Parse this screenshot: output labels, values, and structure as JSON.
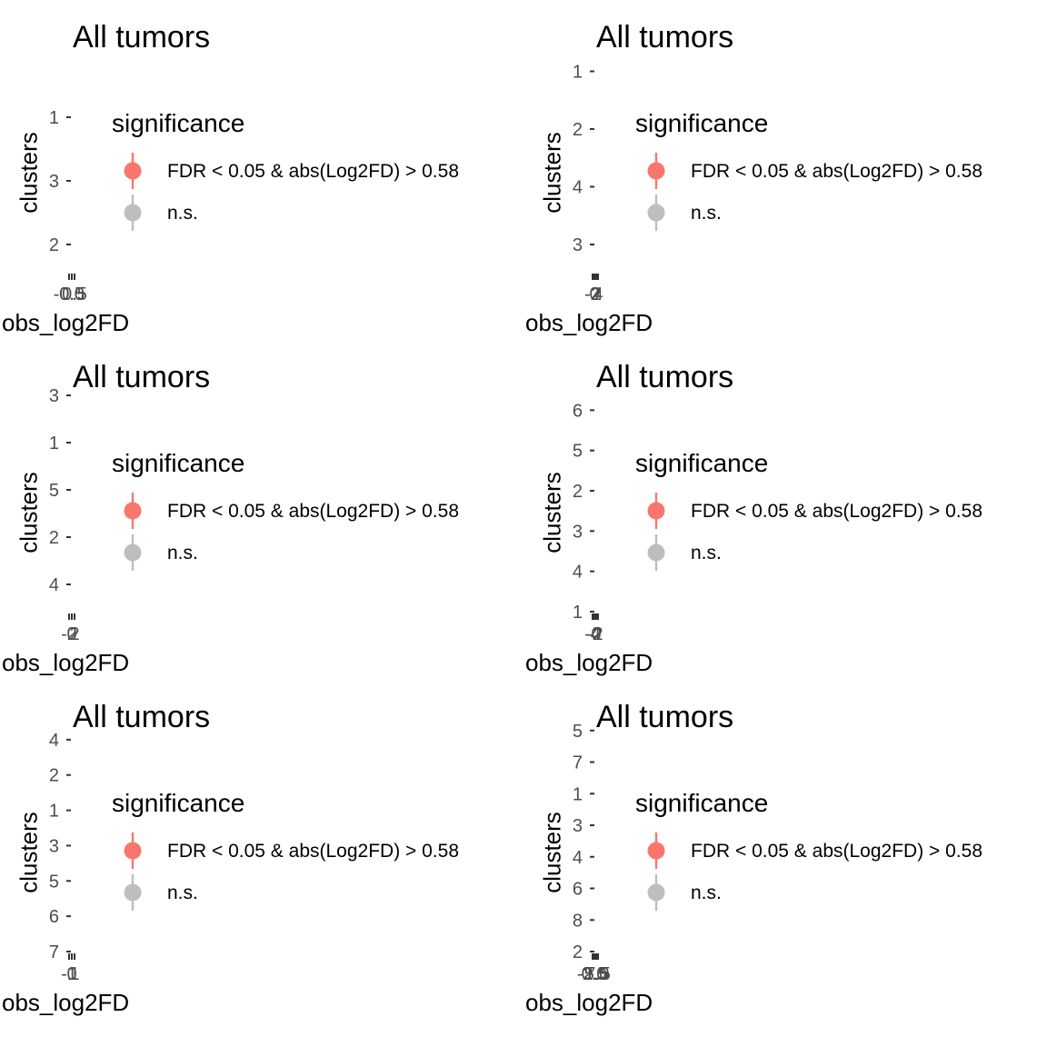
{
  "colors": {
    "significant": "#F8766D",
    "ns": "#BEBEBE",
    "axis_text": "#4D4D4D",
    "tick": "#333333"
  },
  "chart_data": [
    {
      "type": "scatter",
      "title": "All tumors",
      "xlabel": "obs_log2FD",
      "ylabel": "clusters",
      "categories": [
        "2",
        "3",
        "1"
      ],
      "x_ticks": [
        "-0.5",
        "0.0",
        "0.5"
      ],
      "series": [],
      "legend": {
        "title": "significance",
        "position": "right",
        "entries": [
          "FDR < 0.05 & abs(Log2FD) > 0.58",
          "n.s."
        ]
      }
    },
    {
      "type": "scatter",
      "title": "All tumors",
      "xlabel": "obs_log2FD",
      "ylabel": "clusters",
      "categories": [
        "3",
        "4",
        "2",
        "1"
      ],
      "x_ticks": [
        "-2",
        "0",
        "2",
        "4"
      ],
      "series": [],
      "legend": {
        "title": "significance",
        "position": "right",
        "entries": [
          "FDR < 0.05 & abs(Log2FD) > 0.58",
          "n.s."
        ]
      }
    },
    {
      "type": "scatter",
      "title": "All tumors",
      "xlabel": "obs_log2FD",
      "ylabel": "clusters",
      "categories": [
        "4",
        "2",
        "5",
        "1",
        "3"
      ],
      "x_ticks": [
        "-2",
        "0",
        "2"
      ],
      "series": [],
      "legend": {
        "title": "significance",
        "position": "right",
        "entries": [
          "FDR < 0.05 & abs(Log2FD) > 0.58",
          "n.s."
        ]
      }
    },
    {
      "type": "scatter",
      "title": "All tumors",
      "xlabel": "obs_log2FD",
      "ylabel": "clusters",
      "categories": [
        "1",
        "4",
        "3",
        "2",
        "5",
        "6"
      ],
      "x_ticks": [
        "-4",
        "-2",
        "0",
        "2"
      ],
      "series": [],
      "legend": {
        "title": "significance",
        "position": "right",
        "entries": [
          "FDR < 0.05 & abs(Log2FD) > 0.58",
          "n.s."
        ]
      }
    },
    {
      "type": "scatter",
      "title": "All tumors",
      "xlabel": "obs_log2FD",
      "ylabel": "clusters",
      "categories": [
        "7",
        "6",
        "5",
        "3",
        "1",
        "2",
        "4"
      ],
      "x_ticks": [
        "-1",
        "0",
        "1"
      ],
      "series": [],
      "legend": {
        "title": "significance",
        "position": "right",
        "entries": [
          "FDR < 0.05 & abs(Log2FD) > 0.58",
          "n.s."
        ]
      }
    },
    {
      "type": "scatter",
      "title": "All tumors",
      "xlabel": "obs_log2FD",
      "ylabel": "clusters",
      "categories": [
        "2",
        "8",
        "6",
        "4",
        "3",
        "1",
        "7",
        "5"
      ],
      "x_ticks": [
        "-2.5",
        "0.0",
        "2.5",
        "5.0",
        "7.5"
      ],
      "series": [],
      "legend": {
        "title": "significance",
        "position": "right",
        "entries": [
          "FDR < 0.05 & abs(Log2FD) > 0.58",
          "n.s."
        ]
      }
    }
  ]
}
